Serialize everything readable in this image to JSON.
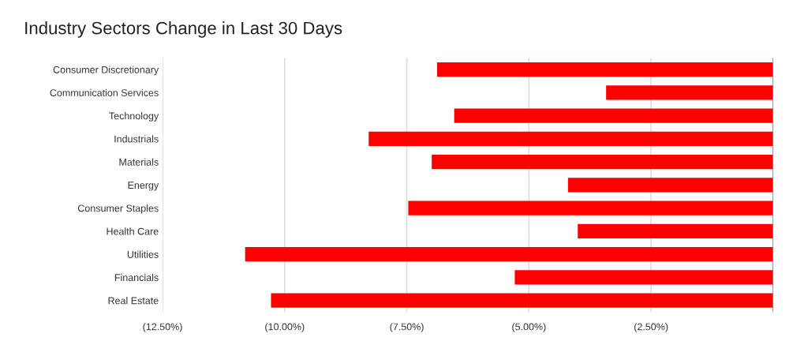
{
  "chart_data": {
    "type": "bar",
    "orientation": "horizontal",
    "title": "Industry Sectors Change in Last 30 Days",
    "categories": [
      "Consumer Discretionary",
      "Communication Services",
      "Technology",
      "Industrials",
      "Materials",
      "Energy",
      "Consumer Staples",
      "Health Care",
      "Utilities",
      "Financials",
      "Real Estate"
    ],
    "values": [
      -6.88,
      -3.42,
      -6.53,
      -8.28,
      -6.99,
      -4.2,
      -7.47,
      -4.0,
      -10.81,
      -5.29,
      -10.28
    ],
    "color": "#ff0000",
    "xlim": [
      -12.5,
      0
    ],
    "xticks": [
      {
        "value": -12.5,
        "label": "(12.50%)"
      },
      {
        "value": -10,
        "label": "(10.00%)"
      },
      {
        "value": -7.5,
        "label": "(7.50%)"
      },
      {
        "value": -5,
        "label": "(5.00%)"
      },
      {
        "value": -2.5,
        "label": "(2.50%)"
      },
      {
        "value": 0,
        "label": null
      }
    ],
    "grid": "x",
    "legend": false
  }
}
